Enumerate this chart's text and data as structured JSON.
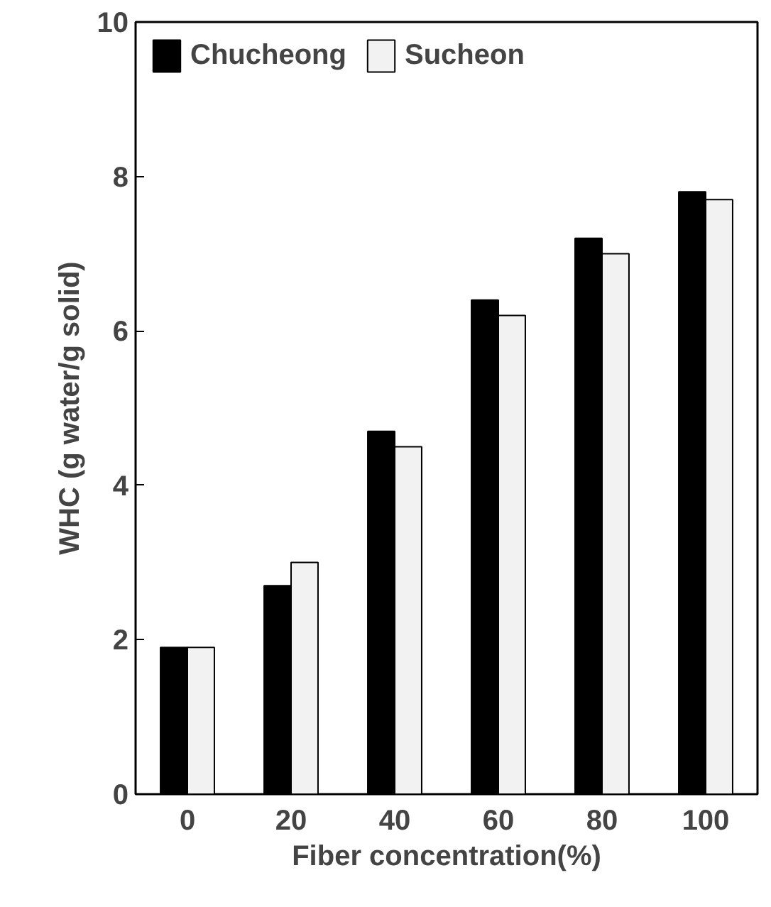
{
  "chart_data": {
    "type": "bar",
    "xlabel": "Fiber concentration(%)",
    "ylabel": "WHC (g water/g solid)",
    "categories": [
      "0",
      "20",
      "40",
      "60",
      "80",
      "100"
    ],
    "series": [
      {
        "name": "Chucheong",
        "color": "#000000",
        "values": [
          1.9,
          2.7,
          4.7,
          6.4,
          7.2,
          7.8
        ]
      },
      {
        "name": "Sucheon",
        "color": "#f2f2f2",
        "values": [
          1.9,
          3.0,
          4.5,
          6.2,
          7.0,
          7.7
        ]
      }
    ],
    "ylim": [
      0,
      10
    ],
    "yticks": [
      0,
      2,
      4,
      6,
      8,
      10
    ],
    "grid": false,
    "legend": "top left"
  }
}
